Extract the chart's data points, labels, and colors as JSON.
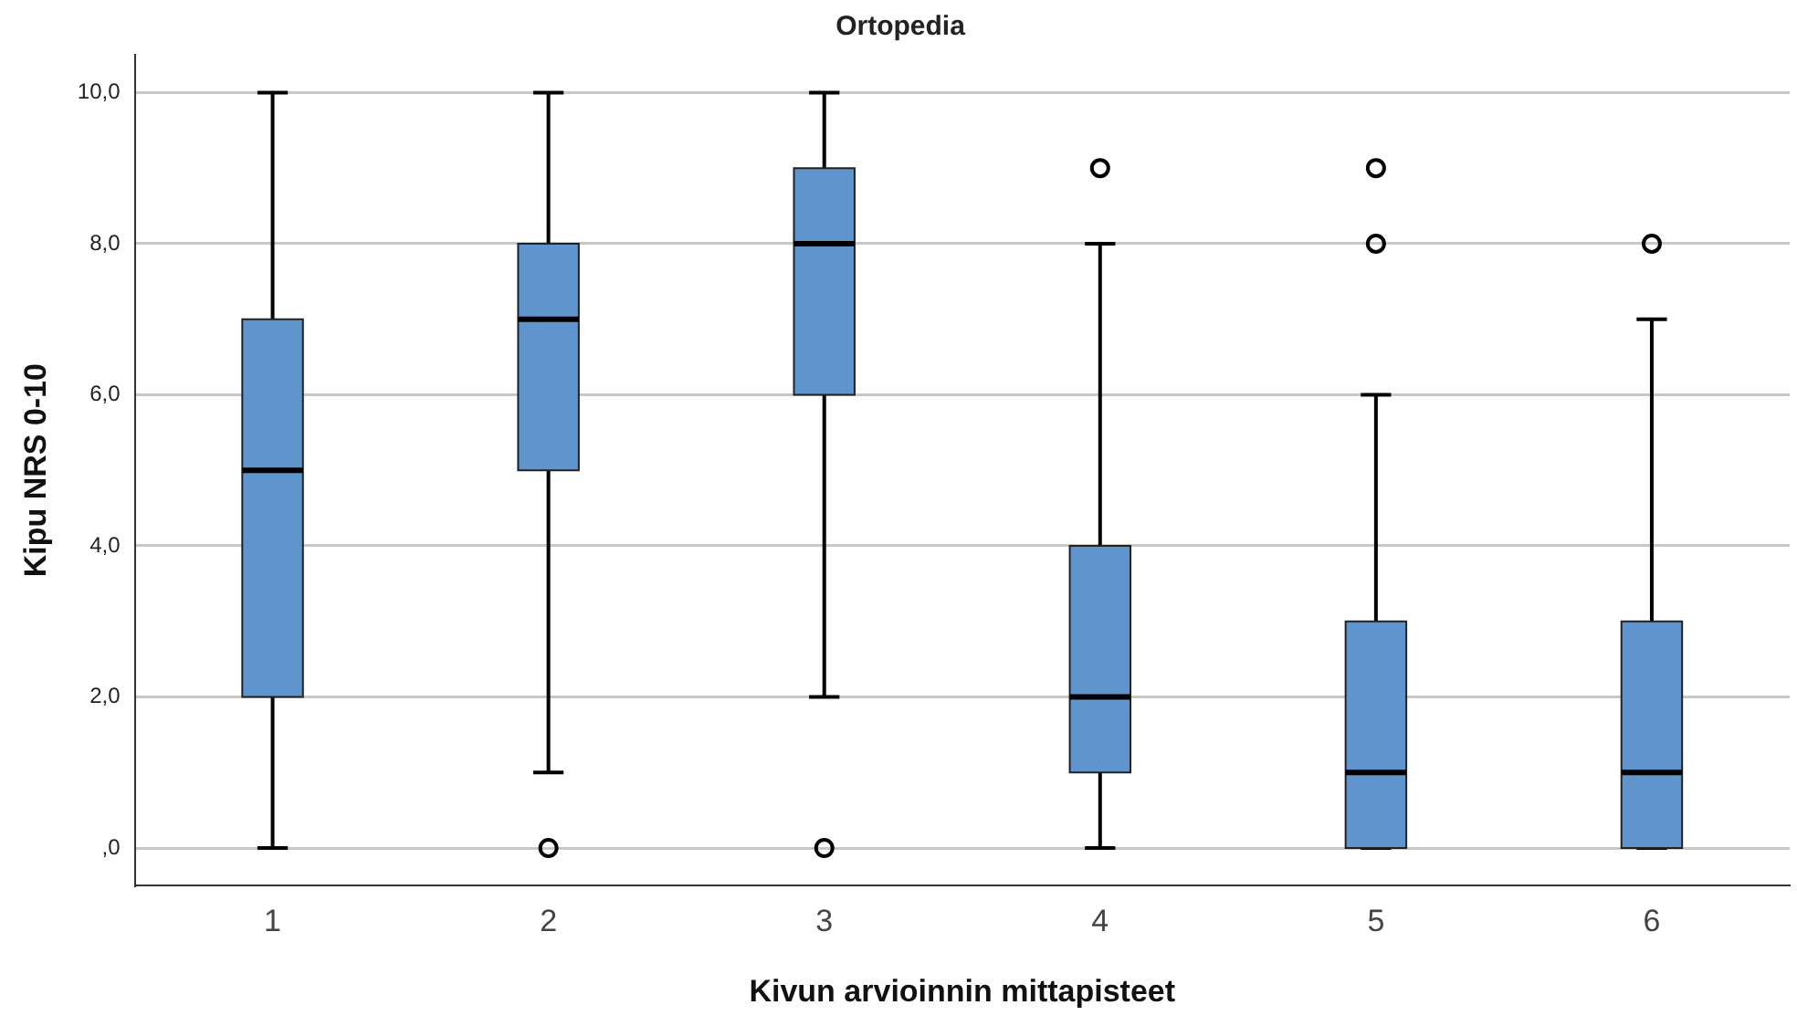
{
  "chart_data": {
    "type": "box",
    "title": "Ortopedia",
    "xlabel": "Kivun arvioinnin mittapisteet",
    "ylabel": "Kipu NRS 0-10",
    "categories": [
      "1",
      "2",
      "3",
      "4",
      "5",
      "6"
    ],
    "color": "#6094cc",
    "boxes": [
      {
        "low": 0,
        "q1": 2,
        "median": 5,
        "q3": 7,
        "high": 10
      },
      {
        "low": 1,
        "q1": 5,
        "median": 7,
        "q3": 8,
        "high": 10,
        "outliers": [
          0
        ]
      },
      {
        "low": 2,
        "q1": 6,
        "median": 8,
        "q3": 9,
        "high": 10,
        "outliers": [
          0
        ]
      },
      {
        "low": 0,
        "q1": 1,
        "median": 2,
        "q3": 4,
        "high": 8,
        "outliers": [
          9
        ]
      },
      {
        "low": 0,
        "q1": 0,
        "median": 1,
        "q3": 3,
        "high": 6,
        "outliers": [
          8,
          9
        ]
      },
      {
        "low": 0,
        "q1": 0,
        "median": 1,
        "q3": 3,
        "high": 7,
        "outliers": [
          8
        ]
      }
    ],
    "ylim": [
      -0.5,
      10.5
    ],
    "yticks": [
      {
        "value": 0,
        "label": ",0"
      },
      {
        "value": 2,
        "label": "2,0"
      },
      {
        "value": 4,
        "label": "4,0"
      },
      {
        "value": 6,
        "label": "6,0"
      },
      {
        "value": 8,
        "label": "8,0"
      },
      {
        "value": 10,
        "label": "10,0"
      }
    ],
    "grid": "y",
    "marker": "circle"
  }
}
